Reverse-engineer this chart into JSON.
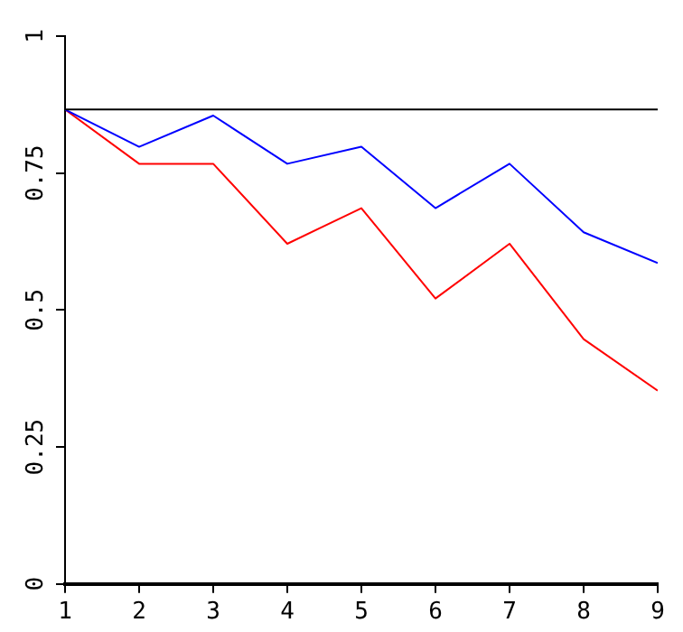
{
  "chart_data": {
    "type": "line",
    "x": [
      1,
      2,
      3,
      4,
      5,
      6,
      7,
      8,
      9
    ],
    "series": [
      {
        "color": "#0000ff",
        "values": [
          0.866,
          0.798,
          0.855,
          0.767,
          0.798,
          0.686,
          0.767,
          0.642,
          0.586
        ]
      },
      {
        "color": "#ff0000",
        "values": [
          0.866,
          0.767,
          0.767,
          0.621,
          0.686,
          0.521,
          0.621,
          0.447,
          0.353
        ]
      }
    ],
    "xlim": [
      1,
      9
    ],
    "xticks": [
      1,
      2,
      3,
      4,
      5,
      6,
      7,
      8,
      9
    ],
    "ylim": [
      0,
      1
    ],
    "yticks": [
      0,
      0.25,
      0.5,
      0.75,
      1
    ],
    "ref_lines": [
      {
        "axis": "y",
        "value": 0.866,
        "color": "#000000"
      }
    ],
    "grid": false,
    "legend": false,
    "marker": "none",
    "line_style": "solid"
  }
}
